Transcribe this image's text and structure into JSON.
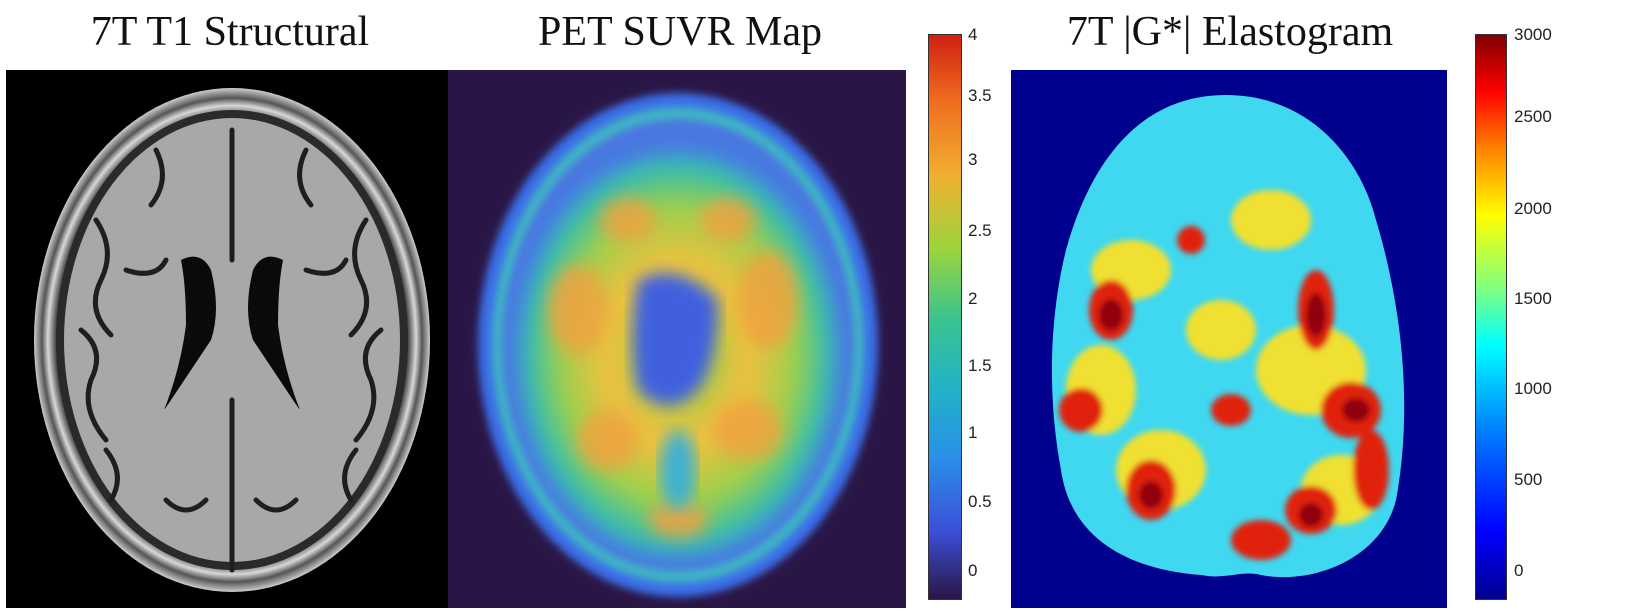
{
  "panels": {
    "t1": {
      "title": "7T T1 Structural",
      "colormap": "grayscale"
    },
    "pet": {
      "title": "PET SUVR Map",
      "colormap": "parula",
      "colorbar": {
        "min": 0,
        "max": 4,
        "ticks": [
          "4",
          "3.5",
          "3",
          "2.5",
          "2",
          "1.5",
          "1",
          "0.5",
          "0"
        ]
      }
    },
    "mre": {
      "title": "7T |G*| Elastogram",
      "colormap": "jet",
      "colorbar": {
        "min": 0,
        "max": 3000,
        "ticks": [
          "3000",
          "2500",
          "2000",
          "1500",
          "1000",
          "500",
          "0"
        ]
      }
    }
  },
  "colors": {
    "t1_background": "#000000",
    "pet_background": "#2a1646",
    "mre_background": "#00008f"
  }
}
